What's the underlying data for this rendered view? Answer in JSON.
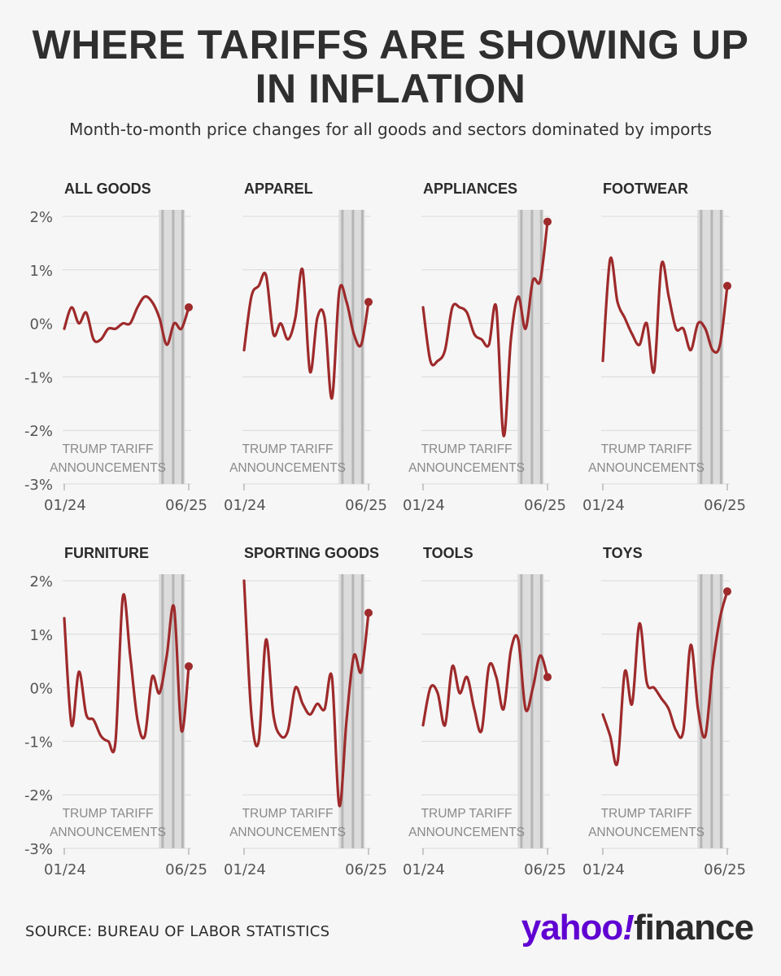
{
  "title_line1": "WHERE TARIFFS ARE SHOWING UP",
  "title_line2": "IN INFLATION",
  "subtitle": "Month-to-month price changes for all goods and sectors dominated by imports",
  "source": "SOURCE: BUREAU OF LABOR STATISTICS",
  "logo": {
    "part1": "yahoo",
    "part2": "!",
    "part3": "finance"
  },
  "colors": {
    "line": "#9e2a2b",
    "grid": "#d9d9d9",
    "band": "#dcdcdc",
    "band_line": "#b5b5b5",
    "text": "#2b2b2b",
    "muted": "#8a8a8a"
  },
  "chart_data": [
    {
      "type": "line",
      "title": "ALL GOODS",
      "y_tick_labels": [
        "2%",
        "1%",
        "0%",
        "-1%",
        "-2%",
        "-3%"
      ],
      "x_tick_labels": [
        "01/24",
        "06/25"
      ],
      "ylim": [
        -3,
        2
      ],
      "annotation": [
        "TRUMP TARIFF",
        "ANNOUNCEMENTS"
      ],
      "values": [
        -0.1,
        0.3,
        0.0,
        0.2,
        -0.3,
        -0.3,
        -0.1,
        -0.1,
        0.0,
        0.0,
        0.3,
        0.5,
        0.4,
        0.1,
        -0.4,
        0.0,
        -0.1,
        0.3
      ]
    },
    {
      "type": "line",
      "title": "APPAREL",
      "y_tick_labels": [],
      "x_tick_labels": [
        "01/24",
        "06/25"
      ],
      "ylim": [
        -3,
        2
      ],
      "annotation": [
        "TRUMP TARIFF",
        "ANNOUNCEMENTS"
      ],
      "values": [
        -0.5,
        0.5,
        0.7,
        0.9,
        -0.2,
        0.0,
        -0.3,
        0.1,
        1.0,
        -0.9,
        0.1,
        0.1,
        -1.4,
        0.6,
        0.4,
        -0.2,
        -0.4,
        0.4
      ]
    },
    {
      "type": "line",
      "title": "APPLIANCES",
      "y_tick_labels": [],
      "x_tick_labels": [
        "01/24",
        "06/25"
      ],
      "ylim": [
        -3,
        2
      ],
      "annotation": [
        "TRUMP TARIFF",
        "ANNOUNCEMENTS"
      ],
      "values": [
        0.3,
        -0.7,
        -0.7,
        -0.5,
        0.3,
        0.3,
        0.2,
        -0.2,
        -0.3,
        -0.4,
        0.3,
        -2.1,
        -0.3,
        0.5,
        -0.1,
        0.8,
        0.8,
        1.9
      ]
    },
    {
      "type": "line",
      "title": "FOOTWEAR",
      "y_tick_labels": [],
      "x_tick_labels": [
        "01/24",
        "06/25"
      ],
      "ylim": [
        -3,
        2
      ],
      "annotation": [
        "TRUMP TARIFF",
        "ANNOUNCEMENTS"
      ],
      "values": [
        -0.7,
        1.2,
        0.4,
        0.1,
        -0.2,
        -0.4,
        0.0,
        -0.9,
        1.1,
        0.5,
        -0.1,
        -0.1,
        -0.5,
        0.0,
        -0.1,
        -0.5,
        -0.4,
        0.7
      ]
    },
    {
      "type": "line",
      "title": "FURNITURE",
      "y_tick_labels": [
        "2%",
        "1%",
        "0%",
        "-1%",
        "-2%",
        "-3%"
      ],
      "x_tick_labels": [
        "01/24",
        "06/25"
      ],
      "ylim": [
        -3,
        2
      ],
      "annotation": [
        "TRUMP TARIFF",
        "ANNOUNCEMENTS"
      ],
      "values": [
        1.3,
        -0.7,
        0.3,
        -0.5,
        -0.6,
        -0.9,
        -1.0,
        -1.0,
        1.7,
        0.6,
        -0.6,
        -0.9,
        0.2,
        -0.1,
        0.6,
        1.5,
        -0.8,
        0.4
      ]
    },
    {
      "type": "line",
      "title": "SPORTING GOODS",
      "y_tick_labels": [],
      "x_tick_labels": [
        "01/24",
        "06/25"
      ],
      "ylim": [
        -3,
        2
      ],
      "annotation": [
        "TRUMP TARIFF",
        "ANNOUNCEMENTS"
      ],
      "values": [
        2.0,
        -0.5,
        -1.0,
        0.9,
        -0.5,
        -0.9,
        -0.8,
        0.0,
        -0.3,
        -0.5,
        -0.3,
        -0.4,
        0.2,
        -2.2,
        -0.6,
        0.6,
        0.3,
        1.4
      ]
    },
    {
      "type": "line",
      "title": "TOOLS",
      "y_tick_labels": [],
      "x_tick_labels": [
        "01/24",
        "06/25"
      ],
      "ylim": [
        -3,
        2
      ],
      "annotation": [
        "TRUMP TARIFF",
        "ANNOUNCEMENTS"
      ],
      "values": [
        -0.7,
        0.0,
        -0.1,
        -0.7,
        0.4,
        -0.1,
        0.2,
        -0.4,
        -0.8,
        0.4,
        0.2,
        -0.4,
        0.7,
        0.9,
        -0.4,
        0.0,
        0.6,
        0.2
      ]
    },
    {
      "type": "line",
      "title": "TOYS",
      "y_tick_labels": [],
      "x_tick_labels": [
        "01/24",
        "06/25"
      ],
      "ylim": [
        -3,
        2
      ],
      "annotation": [
        "TRUMP TARIFF",
        "ANNOUNCEMENTS"
      ],
      "values": [
        -0.5,
        -0.9,
        -1.4,
        0.3,
        -0.3,
        1.2,
        0.1,
        0.0,
        -0.2,
        -0.4,
        -0.8,
        -0.8,
        0.8,
        -0.4,
        -0.9,
        0.4,
        1.3,
        1.8
      ]
    }
  ]
}
